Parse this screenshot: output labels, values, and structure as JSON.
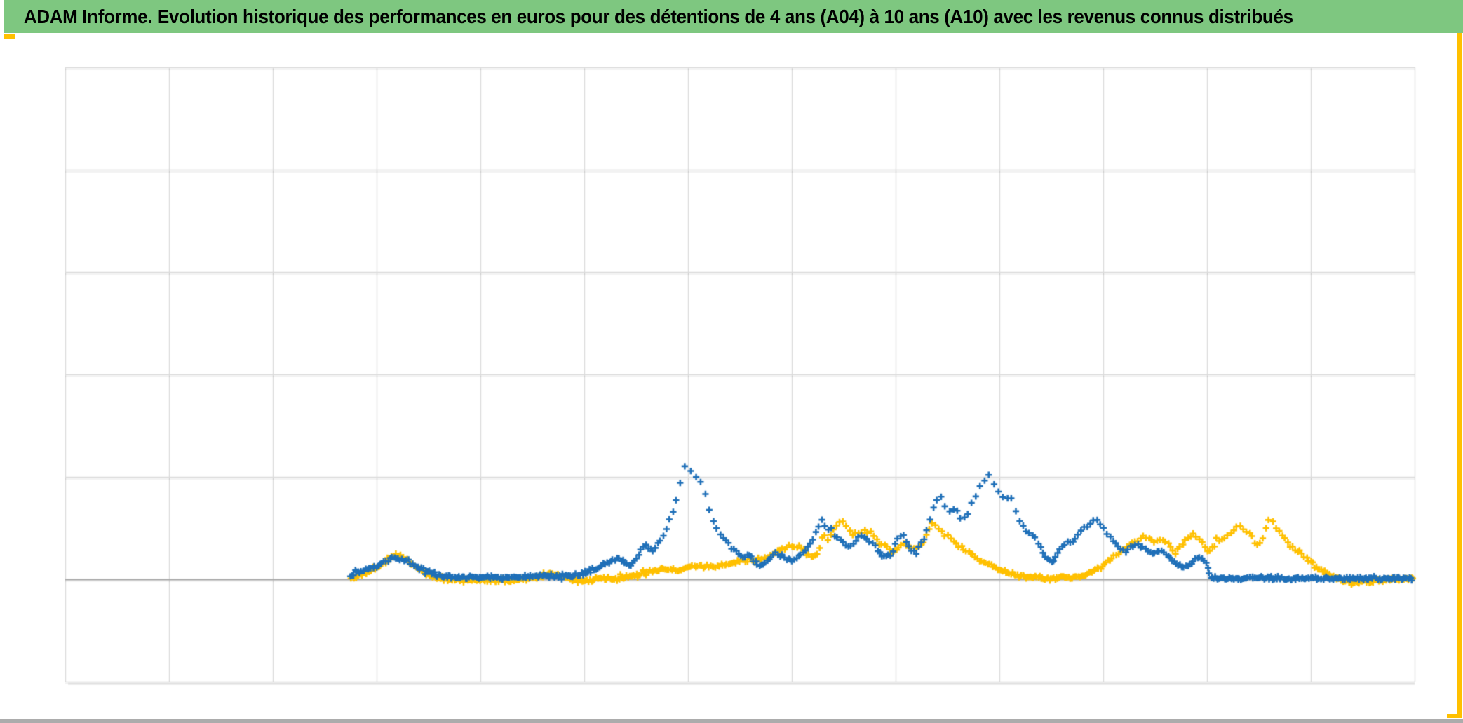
{
  "header": {
    "title": "ADAM Informe. Evolution historique des performances en euros pour des détentions de 4 ans (A04) à 10 ans (A10) avec les revenus connus distribués",
    "bg_color": "#7EC780",
    "text_color": "#000000"
  },
  "accents": {
    "color": "#FFC000"
  },
  "footer": {
    "bar_color": "#ACACAC"
  },
  "chart_data": {
    "type": "scatter",
    "title": "",
    "xlabel": "",
    "ylabel": "",
    "axis_labels_visible": false,
    "legend_visible": false,
    "marker": "plus",
    "grid": {
      "visible": true,
      "columns": 13,
      "rows": 6,
      "line_color": "#D9D9D9",
      "axis_line_color": "#A6A6A6",
      "axis_row_from_bottom": 1
    },
    "x_unit": "gridline-columns (no tick labels shown)",
    "y_unit": "gridline-rows above zero axis (no tick labels shown)",
    "xlim": [
      0,
      13
    ],
    "ylim": [
      -1,
      5
    ],
    "series": [
      {
        "name": "series-gold",
        "color": "#FFC000",
        "points": [
          [
            2.75,
            0.01
          ],
          [
            2.85,
            0.04
          ],
          [
            2.95,
            0.09
          ],
          [
            3.05,
            0.15
          ],
          [
            3.14,
            0.22
          ],
          [
            3.2,
            0.25
          ],
          [
            3.25,
            0.21
          ],
          [
            3.34,
            0.14
          ],
          [
            3.45,
            0.07
          ],
          [
            3.56,
            0.02
          ],
          [
            3.73,
            -0.01
          ],
          [
            3.9,
            0.0
          ],
          [
            4.1,
            -0.01
          ],
          [
            4.3,
            -0.01
          ],
          [
            4.51,
            0.01
          ],
          [
            4.63,
            0.05
          ],
          [
            4.72,
            0.06
          ],
          [
            4.82,
            0.02
          ],
          [
            4.93,
            -0.01
          ],
          [
            5.05,
            -0.01
          ],
          [
            5.17,
            0.01
          ],
          [
            5.29,
            0.0
          ],
          [
            5.4,
            0.02
          ],
          [
            5.49,
            0.03
          ],
          [
            5.57,
            0.06
          ],
          [
            5.67,
            0.08
          ],
          [
            5.76,
            0.1
          ],
          [
            5.84,
            0.1
          ],
          [
            5.93,
            0.08
          ],
          [
            5.99,
            0.12
          ],
          [
            6.06,
            0.14
          ],
          [
            6.14,
            0.12
          ],
          [
            6.22,
            0.13
          ],
          [
            6.3,
            0.13
          ],
          [
            6.39,
            0.15
          ],
          [
            6.47,
            0.17
          ],
          [
            6.55,
            0.19
          ],
          [
            6.63,
            0.18
          ],
          [
            6.71,
            0.2
          ],
          [
            6.79,
            0.23
          ],
          [
            6.87,
            0.27
          ],
          [
            6.95,
            0.32
          ],
          [
            7.02,
            0.33
          ],
          [
            7.09,
            0.3
          ],
          [
            7.16,
            0.24
          ],
          [
            7.21,
            0.21
          ],
          [
            7.26,
            0.27
          ],
          [
            7.3,
            0.43
          ],
          [
            7.34,
            0.38
          ],
          [
            7.39,
            0.47
          ],
          [
            7.45,
            0.55
          ],
          [
            7.49,
            0.56
          ],
          [
            7.54,
            0.49
          ],
          [
            7.59,
            0.43
          ],
          [
            7.65,
            0.45
          ],
          [
            7.7,
            0.48
          ],
          [
            7.76,
            0.45
          ],
          [
            7.81,
            0.4
          ],
          [
            7.86,
            0.35
          ],
          [
            7.92,
            0.31
          ],
          [
            7.97,
            0.26
          ],
          [
            8.02,
            0.3
          ],
          [
            8.07,
            0.34
          ],
          [
            8.13,
            0.31
          ],
          [
            8.18,
            0.28
          ],
          [
            8.24,
            0.32
          ],
          [
            8.29,
            0.41
          ],
          [
            8.33,
            0.51
          ],
          [
            8.36,
            0.55
          ],
          [
            8.4,
            0.51
          ],
          [
            8.45,
            0.46
          ],
          [
            8.51,
            0.41
          ],
          [
            8.56,
            0.37
          ],
          [
            8.61,
            0.33
          ],
          [
            8.67,
            0.29
          ],
          [
            8.72,
            0.25
          ],
          [
            8.78,
            0.21
          ],
          [
            8.84,
            0.17
          ],
          [
            8.91,
            0.13
          ],
          [
            8.98,
            0.1
          ],
          [
            9.05,
            0.07
          ],
          [
            9.13,
            0.05
          ],
          [
            9.21,
            0.03
          ],
          [
            9.3,
            0.02
          ],
          [
            9.4,
            0.02
          ],
          [
            9.49,
            0.01
          ],
          [
            9.59,
            0.01
          ],
          [
            9.68,
            0.02
          ],
          [
            9.78,
            0.03
          ],
          [
            9.86,
            0.06
          ],
          [
            9.93,
            0.09
          ],
          [
            9.99,
            0.13
          ],
          [
            10.06,
            0.19
          ],
          [
            10.13,
            0.24
          ],
          [
            10.2,
            0.29
          ],
          [
            10.26,
            0.33
          ],
          [
            10.33,
            0.38
          ],
          [
            10.39,
            0.41
          ],
          [
            10.44,
            0.39
          ],
          [
            10.49,
            0.36
          ],
          [
            10.54,
            0.4
          ],
          [
            10.59,
            0.38
          ],
          [
            10.64,
            0.32
          ],
          [
            10.69,
            0.26
          ],
          [
            10.74,
            0.31
          ],
          [
            10.79,
            0.37
          ],
          [
            10.84,
            0.43
          ],
          [
            10.88,
            0.44
          ],
          [
            10.93,
            0.38
          ],
          [
            10.97,
            0.32
          ],
          [
            11.01,
            0.27
          ],
          [
            11.06,
            0.32
          ],
          [
            11.11,
            0.38
          ],
          [
            11.17,
            0.4
          ],
          [
            11.22,
            0.45
          ],
          [
            11.28,
            0.51
          ],
          [
            11.32,
            0.53
          ],
          [
            11.37,
            0.48
          ],
          [
            11.43,
            0.41
          ],
          [
            11.48,
            0.35
          ],
          [
            11.52,
            0.34
          ],
          [
            11.55,
            0.45
          ],
          [
            11.59,
            0.58
          ],
          [
            11.62,
            0.59
          ],
          [
            11.66,
            0.51
          ],
          [
            11.71,
            0.45
          ],
          [
            11.76,
            0.38
          ],
          [
            11.82,
            0.31
          ],
          [
            11.87,
            0.26
          ],
          [
            11.93,
            0.23
          ],
          [
            11.98,
            0.18
          ],
          [
            12.05,
            0.12
          ],
          [
            12.11,
            0.08
          ],
          [
            12.18,
            0.05
          ],
          [
            12.25,
            0.02
          ],
          [
            12.32,
            -0.01
          ],
          [
            12.4,
            -0.03
          ],
          [
            12.48,
            -0.03
          ],
          [
            12.56,
            -0.03
          ],
          [
            12.64,
            -0.01
          ],
          [
            12.75,
            -0.01
          ],
          [
            12.87,
            0.0
          ],
          [
            12.99,
            0.01
          ]
        ]
      },
      {
        "name": "series-blue",
        "color": "#1E6FB8",
        "points": [
          [
            2.75,
            0.03
          ],
          [
            2.82,
            0.06
          ],
          [
            2.92,
            0.1
          ],
          [
            3.02,
            0.14
          ],
          [
            3.12,
            0.2
          ],
          [
            3.2,
            0.21
          ],
          [
            3.29,
            0.18
          ],
          [
            3.43,
            0.1
          ],
          [
            3.53,
            0.06
          ],
          [
            3.63,
            0.03
          ],
          [
            3.83,
            0.02
          ],
          [
            4.1,
            0.02
          ],
          [
            4.37,
            0.02
          ],
          [
            4.64,
            0.04
          ],
          [
            4.78,
            0.03
          ],
          [
            4.91,
            0.03
          ],
          [
            5.01,
            0.06
          ],
          [
            5.11,
            0.11
          ],
          [
            5.25,
            0.18
          ],
          [
            5.32,
            0.21
          ],
          [
            5.39,
            0.17
          ],
          [
            5.45,
            0.13
          ],
          [
            5.52,
            0.25
          ],
          [
            5.59,
            0.33
          ],
          [
            5.66,
            0.27
          ],
          [
            5.72,
            0.35
          ],
          [
            5.79,
            0.51
          ],
          [
            5.86,
            0.67
          ],
          [
            5.91,
            0.86
          ],
          [
            5.95,
            1.03
          ],
          [
            5.98,
            1.12
          ],
          [
            6.01,
            1.07
          ],
          [
            6.05,
            1.01
          ],
          [
            6.08,
            0.99
          ],
          [
            6.13,
            0.92
          ],
          [
            6.18,
            0.78
          ],
          [
            6.24,
            0.58
          ],
          [
            6.29,
            0.47
          ],
          [
            6.34,
            0.4
          ],
          [
            6.41,
            0.34
          ],
          [
            6.48,
            0.25
          ],
          [
            6.53,
            0.21
          ],
          [
            6.59,
            0.24
          ],
          [
            6.64,
            0.17
          ],
          [
            6.7,
            0.14
          ],
          [
            6.77,
            0.19
          ],
          [
            6.84,
            0.25
          ],
          [
            6.91,
            0.23
          ],
          [
            6.97,
            0.19
          ],
          [
            7.04,
            0.19
          ],
          [
            7.11,
            0.27
          ],
          [
            7.18,
            0.35
          ],
          [
            7.24,
            0.49
          ],
          [
            7.29,
            0.59
          ],
          [
            7.34,
            0.51
          ],
          [
            7.41,
            0.43
          ],
          [
            7.48,
            0.37
          ],
          [
            7.55,
            0.3
          ],
          [
            7.61,
            0.37
          ],
          [
            7.67,
            0.43
          ],
          [
            7.73,
            0.38
          ],
          [
            7.8,
            0.32
          ],
          [
            7.86,
            0.24
          ],
          [
            7.91,
            0.21
          ],
          [
            7.97,
            0.27
          ],
          [
            8.02,
            0.38
          ],
          [
            8.07,
            0.45
          ],
          [
            8.11,
            0.36
          ],
          [
            8.17,
            0.25
          ],
          [
            8.22,
            0.31
          ],
          [
            8.28,
            0.41
          ],
          [
            8.32,
            0.58
          ],
          [
            8.38,
            0.75
          ],
          [
            8.43,
            0.82
          ],
          [
            8.47,
            0.75
          ],
          [
            8.52,
            0.65
          ],
          [
            8.57,
            0.69
          ],
          [
            8.63,
            0.58
          ],
          [
            8.68,
            0.62
          ],
          [
            8.72,
            0.72
          ],
          [
            8.78,
            0.84
          ],
          [
            8.83,
            0.94
          ],
          [
            8.87,
            0.99
          ],
          [
            8.91,
            1.02
          ],
          [
            8.95,
            0.93
          ],
          [
            8.99,
            0.85
          ],
          [
            9.04,
            0.78
          ],
          [
            9.09,
            0.82
          ],
          [
            9.14,
            0.75
          ],
          [
            9.18,
            0.58
          ],
          [
            9.24,
            0.5
          ],
          [
            9.29,
            0.45
          ],
          [
            9.34,
            0.41
          ],
          [
            9.4,
            0.32
          ],
          [
            9.45,
            0.21
          ],
          [
            9.51,
            0.17
          ],
          [
            9.56,
            0.24
          ],
          [
            9.61,
            0.32
          ],
          [
            9.67,
            0.36
          ],
          [
            9.72,
            0.39
          ],
          [
            9.78,
            0.45
          ],
          [
            9.83,
            0.51
          ],
          [
            9.89,
            0.55
          ],
          [
            9.93,
            0.6
          ],
          [
            9.98,
            0.53
          ],
          [
            10.03,
            0.45
          ],
          [
            10.09,
            0.38
          ],
          [
            10.14,
            0.32
          ],
          [
            10.2,
            0.27
          ],
          [
            10.26,
            0.31
          ],
          [
            10.33,
            0.34
          ],
          [
            10.4,
            0.3
          ],
          [
            10.47,
            0.25
          ],
          [
            10.53,
            0.28
          ],
          [
            10.59,
            0.25
          ],
          [
            10.66,
            0.2
          ],
          [
            10.72,
            0.15
          ],
          [
            10.79,
            0.13
          ],
          [
            10.86,
            0.17
          ],
          [
            10.91,
            0.22
          ],
          [
            10.97,
            0.2
          ],
          [
            11.01,
            0.1
          ],
          [
            11.04,
            0.01
          ],
          [
            12.99,
            0.01
          ]
        ]
      }
    ]
  }
}
